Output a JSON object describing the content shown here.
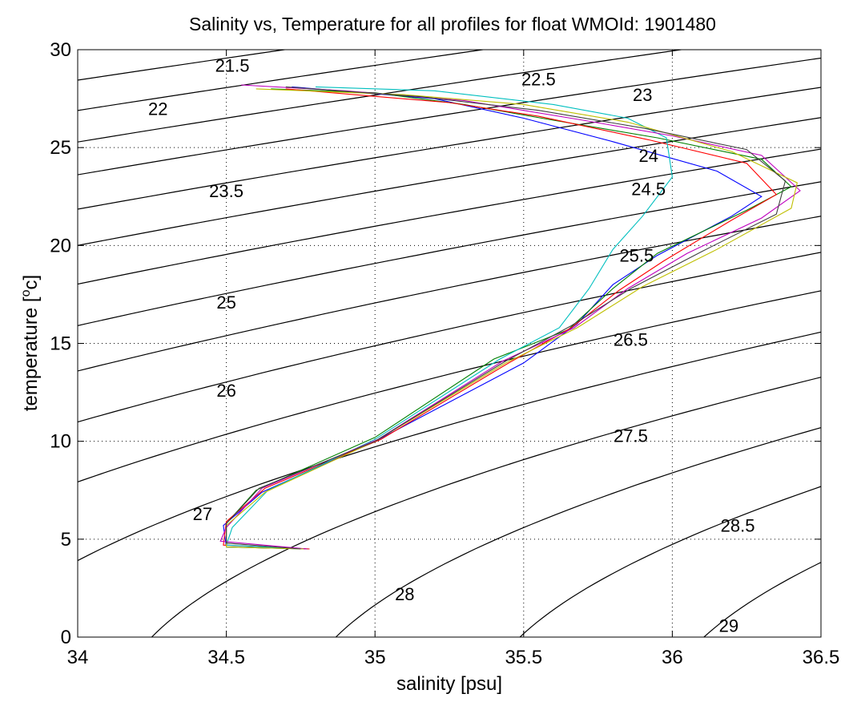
{
  "chart_data": {
    "type": "line",
    "title": "Salinity vs, Temperature for all profiles for float WMOId: 1901480",
    "xlabel": "salinity [psu]",
    "ylabel_prefix": "temperature [",
    "ylabel_sup": "o",
    "ylabel_suffix": "c]",
    "xlim": [
      34,
      36.5
    ],
    "ylim": [
      0,
      30
    ],
    "xticks": [
      34,
      34.5,
      35,
      35.5,
      36,
      36.5
    ],
    "xtick_labels": [
      "34",
      "34.5",
      "35",
      "35.5",
      "36",
      "36.5"
    ],
    "yticks": [
      0,
      5,
      10,
      15,
      20,
      25,
      30
    ],
    "ytick_labels": [
      "0",
      "5",
      "10",
      "15",
      "20",
      "25",
      "30"
    ],
    "grid": true,
    "density_contours": {
      "levels": [
        21.5,
        22,
        22.5,
        23,
        23.5,
        24,
        24.5,
        25,
        25.5,
        26,
        26.5,
        27,
        27.5,
        28,
        28.5,
        29
      ],
      "labels": [
        {
          "text": "21.5",
          "s": 34.52,
          "t": 29.2
        },
        {
          "text": "22",
          "s": 34.27,
          "t": 27.0
        },
        {
          "text": "22.5",
          "s": 35.55,
          "t": 28.5
        },
        {
          "text": "23",
          "s": 35.9,
          "t": 27.7
        },
        {
          "text": "23.5",
          "s": 34.5,
          "t": 22.8
        },
        {
          "text": "24",
          "s": 35.92,
          "t": 24.6
        },
        {
          "text": "24.5",
          "s": 35.92,
          "t": 22.9
        },
        {
          "text": "25",
          "s": 34.5,
          "t": 17.1
        },
        {
          "text": "25.5",
          "s": 35.88,
          "t": 19.5
        },
        {
          "text": "26",
          "s": 34.5,
          "t": 12.6
        },
        {
          "text": "26.5",
          "s": 35.86,
          "t": 15.2
        },
        {
          "text": "27",
          "s": 34.42,
          "t": 6.3
        },
        {
          "text": "27.5",
          "s": 35.86,
          "t": 10.3
        },
        {
          "text": "28",
          "s": 35.1,
          "t": 2.2
        },
        {
          "text": "28.5",
          "s": 36.22,
          "t": 5.7
        },
        {
          "text": "29",
          "s": 36.19,
          "t": 0.6
        }
      ]
    },
    "series": [
      {
        "color": "#0000ff",
        "s": [
          34.78,
          34.5,
          34.49,
          34.62,
          35.0,
          35.5,
          35.68,
          35.8,
          35.95,
          36.2,
          36.3,
          36.15,
          35.8,
          35.5,
          35.2,
          34.72
        ],
        "t": [
          4.5,
          4.6,
          5.7,
          7.4,
          10.0,
          14.0,
          16.0,
          18.0,
          19.5,
          21.5,
          22.5,
          23.8,
          25.3,
          26.5,
          27.5,
          28.1
        ]
      },
      {
        "color": "#008000",
        "s": [
          34.77,
          34.5,
          34.5,
          34.6,
          35.0,
          35.4,
          35.65,
          35.8,
          35.95,
          36.25,
          36.4,
          36.3,
          35.95,
          35.6,
          35.3,
          35.0,
          34.65
        ],
        "t": [
          4.5,
          4.6,
          5.8,
          7.5,
          10.2,
          14.2,
          15.7,
          17.8,
          19.6,
          21.8,
          23.0,
          24.4,
          25.5,
          26.4,
          27.2,
          27.8,
          28.0
        ]
      },
      {
        "color": "#ff0000",
        "s": [
          34.78,
          34.49,
          34.5,
          34.63,
          35.02,
          35.45,
          35.66,
          35.82,
          35.97,
          36.2,
          36.35,
          36.25,
          35.92,
          35.55,
          35.25,
          34.7
        ],
        "t": [
          4.5,
          4.7,
          5.9,
          7.6,
          10.1,
          14.0,
          15.8,
          17.7,
          19.2,
          21.3,
          22.6,
          24.2,
          25.4,
          26.6,
          27.3,
          28.0
        ]
      },
      {
        "color": "#00bfbf",
        "s": [
          34.76,
          34.5,
          34.52,
          34.64,
          35.0,
          35.42,
          35.62,
          35.72,
          35.8,
          35.9,
          36.0,
          35.98,
          35.85,
          35.6,
          35.2,
          34.8
        ],
        "t": [
          4.5,
          4.7,
          5.6,
          7.5,
          10.1,
          14.2,
          15.8,
          17.8,
          19.8,
          21.5,
          23.5,
          25.5,
          26.5,
          27.2,
          27.9,
          28.1
        ]
      },
      {
        "color": "#bf00bf",
        "s": [
          34.77,
          34.48,
          34.5,
          34.62,
          35.01,
          35.43,
          35.67,
          35.85,
          36.05,
          36.3,
          36.43,
          36.3,
          36.0,
          35.7,
          35.3,
          34.9,
          34.55
        ],
        "t": [
          4.5,
          4.9,
          5.6,
          7.6,
          10.1,
          14.1,
          15.8,
          17.8,
          19.6,
          21.4,
          22.8,
          24.6,
          25.6,
          26.4,
          27.4,
          27.9,
          28.2
        ]
      },
      {
        "color": "#bfbf00",
        "s": [
          34.76,
          34.5,
          34.5,
          34.63,
          35.0,
          35.44,
          35.68,
          35.9,
          36.15,
          36.4,
          36.42,
          36.2,
          35.85,
          35.5,
          35.1,
          34.6
        ],
        "t": [
          4.5,
          4.6,
          5.7,
          7.4,
          10.0,
          14.0,
          15.8,
          17.9,
          19.8,
          21.9,
          23.2,
          24.8,
          26.3,
          27.2,
          27.7,
          28.0
        ]
      },
      {
        "color": "#404040",
        "s": [
          34.75,
          34.5,
          34.5,
          34.61,
          35.0,
          35.44,
          35.66,
          35.86,
          36.1,
          36.35,
          36.38,
          36.25,
          35.9,
          35.55,
          35.15,
          34.7
        ],
        "t": [
          4.5,
          4.8,
          5.8,
          7.6,
          10.0,
          14.1,
          15.9,
          17.8,
          19.7,
          21.6,
          23.3,
          24.9,
          26.0,
          26.9,
          27.6,
          28.1
        ]
      }
    ]
  }
}
